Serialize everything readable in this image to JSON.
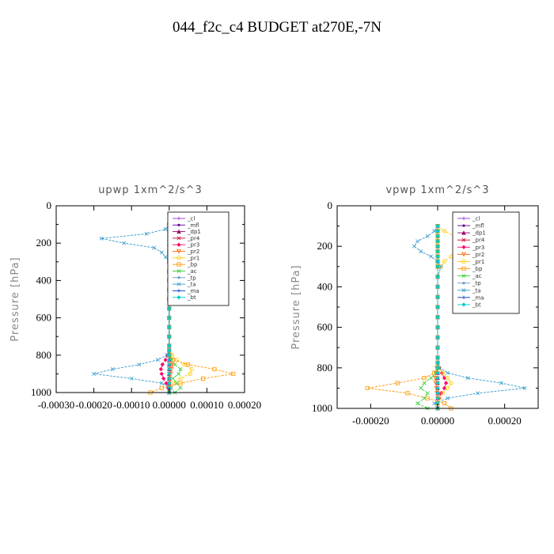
{
  "suptitle": "044_f2c_c4  BUDGET at270E,-7N",
  "chart_data": [
    {
      "type": "line",
      "title": "upwp   1xm^2/s^3",
      "ylabel": "Pressure [hPa]",
      "xlabel": "",
      "xlim": [
        -0.0003,
        0.0002
      ],
      "ylim": [
        1000,
        0
      ],
      "xticks": [
        -0.0003,
        -0.0002,
        -0.0001,
        0.0,
        0.0001,
        0.0002
      ],
      "xtick_labels": [
        "-0.00030",
        "-0.00020",
        "-0.00010",
        "0.00000",
        "0.00010",
        "0.00020"
      ],
      "yticks": [
        0,
        200,
        400,
        600,
        800,
        1000
      ],
      "ytick_labels": [
        "0",
        "200",
        "400",
        "600",
        "800",
        "1000"
      ],
      "legend_position": "top-right",
      "pressure_levels": [
        100,
        125,
        150,
        175,
        200,
        225,
        250,
        275,
        300,
        350,
        400,
        450,
        500,
        550,
        600,
        650,
        700,
        750,
        775,
        800,
        825,
        850,
        875,
        900,
        925,
        950,
        975,
        1000
      ],
      "series": [
        {
          "name": "_cl",
          "color": "#9933cc",
          "marker": "+",
          "values": [
            0,
            0,
            0,
            0,
            0,
            0,
            0,
            0,
            0,
            0,
            0,
            0,
            0,
            0,
            0,
            0,
            0,
            0,
            0,
            0,
            0,
            0,
            0,
            0,
            0,
            0,
            0,
            0
          ]
        },
        {
          "name": "_mfl",
          "color": "#660099",
          "marker": "dot",
          "values": [
            0,
            0,
            0,
            0,
            0,
            0,
            0,
            0,
            0,
            0,
            0,
            0,
            0,
            0,
            0,
            0,
            0,
            0,
            0,
            0,
            0,
            0,
            0,
            0,
            0,
            0,
            0,
            0
          ]
        },
        {
          "name": "_dp1",
          "color": "#990066",
          "marker": "triangle",
          "values": [
            0,
            0,
            0,
            0,
            0,
            0,
            0,
            0,
            0,
            0,
            0,
            0,
            0,
            0,
            0,
            0,
            0,
            0,
            0,
            0,
            0,
            0,
            0,
            0,
            0,
            0,
            0,
            0
          ]
        },
        {
          "name": "_pr4",
          "color": "#cc0033",
          "marker": "x",
          "values": [
            0,
            0,
            0,
            0,
            0,
            0,
            0,
            0,
            0,
            0,
            0,
            0,
            0,
            0,
            0,
            0,
            0,
            0,
            0,
            0,
            0,
            0,
            0,
            0,
            0,
            0,
            0,
            0
          ]
        },
        {
          "name": "_pr3",
          "color": "#ff0066",
          "marker": "diamond",
          "values": [
            0,
            0,
            0,
            0,
            0,
            0,
            0,
            0,
            0,
            0,
            0,
            0,
            0,
            0,
            0,
            0,
            0,
            0,
            0,
            -5e-06,
            -1e-05,
            -1.8e-05,
            -2.2e-05,
            -2e-05,
            -1.5e-05,
            -8e-06,
            -3e-06,
            0
          ]
        },
        {
          "name": "_pr2",
          "color": "#ff6600",
          "marker": "triangle-down",
          "values": [
            0,
            0,
            0,
            0,
            0,
            0,
            0,
            0,
            0,
            0,
            0,
            0,
            0,
            0,
            0,
            0,
            0,
            0,
            0,
            3e-06,
            6e-06,
            8e-06,
            6e-06,
            4e-06,
            2e-06,
            0,
            0,
            0
          ]
        },
        {
          "name": "_pr1",
          "color": "#ffcc00",
          "marker": "circle",
          "values": [
            0,
            2e-05,
            5e-05,
            8e-05,
            6e-05,
            3e-05,
            1e-05,
            4e-06,
            2e-06,
            0,
            0,
            0,
            0,
            0,
            0,
            0,
            0,
            0,
            0,
            8e-06,
            2e-05,
            4e-05,
            6e-05,
            5.5e-05,
            3e-05,
            1.2e-05,
            4e-06,
            0
          ]
        },
        {
          "name": "_bp",
          "color": "#ff9900",
          "marker": "square",
          "values": [
            0,
            0,
            4e-06,
            1e-05,
            1.2e-05,
            6e-06,
            0,
            0,
            0,
            0,
            0,
            0,
            0,
            0,
            0,
            0,
            0,
            0,
            0,
            0,
            1e-05,
            5e-05,
            0.00012,
            0.00017,
            9e-05,
            3e-05,
            -2e-05,
            -5e-05
          ]
        },
        {
          "name": "_ac",
          "color": "#33cc33",
          "marker": "x",
          "values": [
            0,
            0,
            0,
            0,
            0,
            0,
            0,
            0,
            0,
            0,
            0,
            0,
            0,
            0,
            0,
            0,
            0,
            0,
            0,
            0,
            5e-06,
            1.5e-05,
            3e-05,
            2.5e-05,
            1e-05,
            2e-05,
            3e-05,
            1.5e-05
          ]
        },
        {
          "name": "_tp",
          "color": "#6699cc",
          "marker": "dot",
          "values": [
            0,
            0,
            0,
            0,
            0,
            0,
            0,
            0,
            0,
            0,
            0,
            0,
            0,
            0,
            0,
            0,
            0,
            0,
            0,
            0,
            0,
            0,
            0,
            0,
            0,
            0,
            0,
            0
          ]
        },
        {
          "name": "_ta",
          "color": "#3399cc",
          "marker": "x",
          "values": [
            0,
            -1e-05,
            -6e-05,
            -0.00018,
            -0.00012,
            -4e-05,
            -2e-05,
            -1e-05,
            0,
            0,
            0,
            0,
            0,
            0,
            0,
            0,
            0,
            0,
            0,
            -5e-06,
            -3e-05,
            -8e-05,
            -0.00015,
            -0.0002,
            -0.0001,
            -2e-05,
            5e-06,
            0
          ]
        },
        {
          "name": "_ma",
          "color": "#0033cc",
          "marker": "+",
          "values": [
            0,
            0,
            0,
            0,
            0,
            0,
            0,
            0,
            0,
            0,
            0,
            0,
            0,
            0,
            0,
            0,
            0,
            0,
            0,
            0,
            0,
            0,
            0,
            0,
            0,
            0,
            0,
            0
          ]
        },
        {
          "name": "_bt",
          "color": "#00cccc",
          "marker": "diamond",
          "values": [
            0,
            0,
            0,
            0,
            0,
            0,
            0,
            0,
            0,
            0,
            0,
            0,
            0,
            0,
            0,
            0,
            0,
            0,
            0,
            0,
            0,
            0,
            0,
            0,
            0,
            0,
            0,
            0
          ]
        }
      ]
    },
    {
      "type": "line",
      "title": "vpwp   1xm^2/s^3",
      "ylabel": "Pressure [hPa]",
      "xlabel": "",
      "xlim": [
        -0.0003,
        0.0003
      ],
      "ylim": [
        1000,
        0
      ],
      "xticks": [
        -0.0002,
        0.0,
        0.0002
      ],
      "xtick_labels": [
        "-0.00020",
        "0.00000",
        "0.00020"
      ],
      "yticks": [
        0,
        200,
        400,
        600,
        800,
        1000
      ],
      "ytick_labels": [
        "0",
        "200",
        "400",
        "600",
        "800",
        "1000"
      ],
      "legend_position": "top-right",
      "pressure_levels": [
        100,
        125,
        150,
        175,
        200,
        225,
        250,
        275,
        300,
        350,
        400,
        450,
        500,
        550,
        600,
        650,
        700,
        750,
        775,
        800,
        825,
        850,
        875,
        900,
        925,
        950,
        975,
        1000
      ],
      "series": [
        {
          "name": "_cl",
          "color": "#9933cc",
          "marker": "+",
          "values": [
            0,
            0,
            0,
            0,
            0,
            0,
            0,
            0,
            0,
            0,
            0,
            0,
            0,
            0,
            0,
            0,
            0,
            0,
            0,
            0,
            0,
            0,
            0,
            0,
            0,
            0,
            0,
            0
          ]
        },
        {
          "name": "_mfl",
          "color": "#660099",
          "marker": "dot",
          "values": [
            0,
            0,
            0,
            0,
            0,
            0,
            0,
            0,
            0,
            0,
            0,
            0,
            0,
            0,
            0,
            0,
            0,
            0,
            0,
            0,
            0,
            0,
            0,
            0,
            0,
            0,
            0,
            0
          ]
        },
        {
          "name": "_dp1",
          "color": "#990066",
          "marker": "triangle",
          "values": [
            0,
            0,
            0,
            0,
            0,
            0,
            0,
            0,
            0,
            0,
            0,
            0,
            0,
            0,
            0,
            0,
            0,
            0,
            0,
            0,
            0,
            0,
            0,
            0,
            0,
            0,
            0,
            0
          ]
        },
        {
          "name": "_pr4",
          "color": "#cc0033",
          "marker": "x",
          "values": [
            0,
            0,
            0,
            0,
            0,
            0,
            0,
            0,
            0,
            0,
            0,
            0,
            0,
            0,
            0,
            0,
            0,
            0,
            0,
            0,
            0,
            0,
            0,
            0,
            0,
            0,
            0,
            0
          ]
        },
        {
          "name": "_pr3",
          "color": "#ff0066",
          "marker": "diamond",
          "values": [
            0,
            0,
            0,
            0,
            0,
            0,
            0,
            0,
            0,
            0,
            0,
            0,
            0,
            0,
            0,
            0,
            0,
            0,
            0,
            5e-06,
            1.2e-05,
            2e-05,
            2.5e-05,
            2e-05,
            1e-05,
            4e-06,
            0,
            0
          ]
        },
        {
          "name": "_pr2",
          "color": "#ff6600",
          "marker": "triangle-down",
          "values": [
            0,
            0,
            0,
            0,
            0,
            0,
            0,
            0,
            0,
            0,
            0,
            0,
            0,
            0,
            0,
            0,
            0,
            0,
            0,
            -3e-06,
            -6e-06,
            -8e-06,
            -6e-06,
            -4e-06,
            -2e-06,
            0,
            0,
            0
          ]
        },
        {
          "name": "_pr1",
          "color": "#ffcc00",
          "marker": "circle",
          "values": [
            0,
            2e-05,
            5e-05,
            8e-05,
            9e-05,
            7e-05,
            4e-05,
            2e-05,
            1e-05,
            0,
            0,
            0,
            0,
            0,
            0,
            0,
            0,
            0,
            0,
            5e-06,
            1.5e-05,
            3e-05,
            4e-05,
            3e-05,
            1.5e-05,
            5e-06,
            0,
            0
          ]
        },
        {
          "name": "_bp",
          "color": "#ff9900",
          "marker": "square",
          "values": [
            0,
            0,
            0,
            0,
            0,
            0,
            0,
            0,
            0,
            0,
            0,
            0,
            0,
            0,
            0,
            0,
            0,
            0,
            0,
            0,
            -1e-05,
            -4e-05,
            -0.00012,
            -0.00021,
            -9e-05,
            -3e-05,
            2e-05,
            4e-05
          ]
        },
        {
          "name": "_ac",
          "color": "#33cc33",
          "marker": "x",
          "values": [
            0,
            0,
            0,
            0,
            0,
            0,
            0,
            0,
            0,
            0,
            0,
            0,
            0,
            0,
            0,
            0,
            0,
            0,
            0,
            0,
            -5e-06,
            -2e-05,
            -4e-05,
            -5e-05,
            -3e-05,
            -4e-05,
            -6e-05,
            -3e-05
          ]
        },
        {
          "name": "_tp",
          "color": "#6699cc",
          "marker": "dot",
          "values": [
            0,
            0,
            0,
            0,
            0,
            0,
            0,
            0,
            0,
            0,
            0,
            0,
            0,
            0,
            0,
            0,
            0,
            0,
            0,
            0,
            0,
            0,
            0,
            0,
            0,
            0,
            0,
            0
          ]
        },
        {
          "name": "_ta",
          "color": "#3399cc",
          "marker": "x",
          "values": [
            0,
            -1e-05,
            -3e-05,
            -6e-05,
            -7e-05,
            -5e-05,
            -2e-05,
            0,
            1e-05,
            0,
            0,
            0,
            0,
            0,
            0,
            0,
            0,
            0,
            0,
            5e-06,
            3e-05,
            9e-05,
            0.00019,
            0.00026,
            0.00012,
            3e-05,
            -1e-05,
            0
          ]
        },
        {
          "name": "_ma",
          "color": "#0033cc",
          "marker": "+",
          "values": [
            0,
            0,
            0,
            0,
            0,
            0,
            0,
            0,
            0,
            0,
            0,
            0,
            0,
            0,
            0,
            0,
            0,
            0,
            0,
            0,
            0,
            0,
            0,
            0,
            0,
            0,
            0,
            0
          ]
        },
        {
          "name": "_bt",
          "color": "#00cccc",
          "marker": "diamond",
          "values": [
            0,
            0,
            0,
            0,
            0,
            0,
            0,
            0,
            0,
            0,
            0,
            0,
            0,
            0,
            0,
            0,
            0,
            0,
            0,
            0,
            0,
            0,
            0,
            0,
            0,
            0,
            0,
            0
          ]
        }
      ]
    }
  ]
}
